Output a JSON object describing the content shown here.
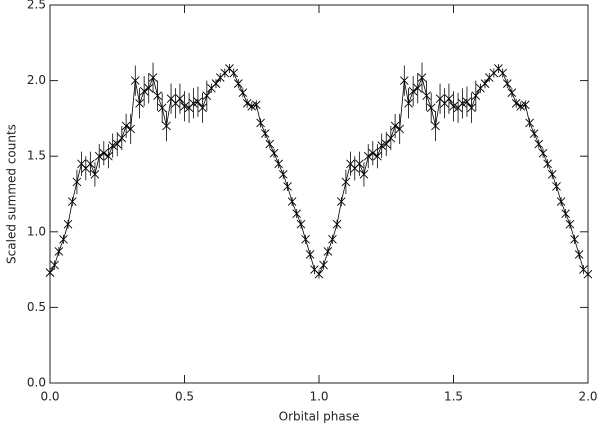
{
  "chart_data": {
    "type": "line",
    "xlabel": "Orbital phase",
    "ylabel": "Scaled summed counts",
    "xlim": [
      0,
      2
    ],
    "ylim": [
      0,
      2.5
    ],
    "xticks": [
      {
        "value": 0,
        "label": "0.0"
      },
      {
        "value": 0.5,
        "label": "0.5"
      },
      {
        "value": 1,
        "label": "1.0"
      },
      {
        "value": 1.5,
        "label": "1.5"
      },
      {
        "value": 2,
        "label": "2.0"
      }
    ],
    "yticks": [
      {
        "value": 0,
        "label": "0.0"
      },
      {
        "value": 0.5,
        "label": "0.5"
      },
      {
        "value": 1,
        "label": "1.0"
      },
      {
        "value": 1.5,
        "label": "1.5"
      },
      {
        "value": 2,
        "label": "2.0"
      },
      {
        "value": 2.5,
        "label": "2.5"
      }
    ],
    "x": [
      0,
      0.017,
      0.033,
      0.05,
      0.067,
      0.083,
      0.1,
      0.117,
      0.133,
      0.15,
      0.167,
      0.183,
      0.2,
      0.217,
      0.233,
      0.25,
      0.267,
      0.283,
      0.3,
      0.317,
      0.333,
      0.35,
      0.367,
      0.383,
      0.4,
      0.417,
      0.433,
      0.45,
      0.467,
      0.483,
      0.5,
      0.517,
      0.533,
      0.55,
      0.567,
      0.583,
      0.6,
      0.617,
      0.633,
      0.65,
      0.667,
      0.683,
      0.7,
      0.717,
      0.733,
      0.75,
      0.767,
      0.783,
      0.8,
      0.817,
      0.833,
      0.85,
      0.867,
      0.883,
      0.9,
      0.917,
      0.933,
      0.95,
      0.967,
      0.983,
      1.0,
      1.017,
      1.033,
      1.05,
      1.067,
      1.083,
      1.1,
      1.117,
      1.133,
      1.15,
      1.167,
      1.183,
      1.2,
      1.217,
      1.233,
      1.25,
      1.267,
      1.283,
      1.3,
      1.317,
      1.333,
      1.35,
      1.367,
      1.383,
      1.4,
      1.417,
      1.433,
      1.45,
      1.467,
      1.483,
      1.5,
      1.517,
      1.533,
      1.55,
      1.567,
      1.583,
      1.6,
      1.617,
      1.633,
      1.65,
      1.667,
      1.683,
      1.7,
      1.717,
      1.733,
      1.75,
      1.767,
      1.783,
      1.8,
      1.817,
      1.833,
      1.85,
      1.867,
      1.883,
      1.9,
      1.917,
      1.933,
      1.95,
      1.967,
      1.983,
      2.0
    ],
    "series": [
      {
        "color": "#000000",
        "values": [
          0.73,
          0.78,
          0.87,
          0.95,
          1.05,
          1.2,
          1.33,
          1.45,
          1.42,
          1.45,
          1.38,
          1.5,
          1.52,
          1.5,
          1.57,
          1.58,
          1.62,
          1.7,
          1.68,
          2.0,
          1.85,
          1.93,
          1.95,
          2.02,
          1.9,
          1.82,
          1.7,
          1.88,
          1.85,
          1.88,
          1.83,
          1.82,
          1.85,
          1.86,
          1.82,
          1.9,
          1.95,
          1.98,
          2.02,
          2.05,
          2.08,
          2.05,
          1.98,
          1.92,
          1.85,
          1.83,
          1.84,
          1.72,
          1.65,
          1.58,
          1.52,
          1.45,
          1.38,
          1.3,
          1.2,
          1.12,
          1.05,
          0.95,
          0.85,
          0.75,
          0.72,
          0.78,
          0.87,
          0.95,
          1.05,
          1.2,
          1.33,
          1.45,
          1.42,
          1.45,
          1.38,
          1.5,
          1.52,
          1.5,
          1.57,
          1.58,
          1.62,
          1.7,
          1.68,
          2.0,
          1.85,
          1.93,
          1.95,
          2.02,
          1.9,
          1.82,
          1.7,
          1.88,
          1.85,
          1.88,
          1.83,
          1.82,
          1.85,
          1.86,
          1.82,
          1.9,
          1.95,
          1.98,
          2.02,
          2.05,
          2.08,
          2.05,
          1.98,
          1.92,
          1.85,
          1.83,
          1.84,
          1.72,
          1.65,
          1.58,
          1.52,
          1.45,
          1.38,
          1.3,
          1.2,
          1.12,
          1.05,
          0.95,
          0.85,
          0.75,
          0.72
        ],
        "errors": [
          0.03,
          0.03,
          0.03,
          0.03,
          0.03,
          0.03,
          0.08,
          0.08,
          0.08,
          0.08,
          0.08,
          0.08,
          0.08,
          0.08,
          0.08,
          0.08,
          0.08,
          0.08,
          0.1,
          0.1,
          0.1,
          0.1,
          0.1,
          0.1,
          0.1,
          0.1,
          0.1,
          0.1,
          0.1,
          0.1,
          0.1,
          0.1,
          0.1,
          0.1,
          0.1,
          0.1,
          0.03,
          0.03,
          0.03,
          0.03,
          0.03,
          0.03,
          0.03,
          0.03,
          0.03,
          0.03,
          0.03,
          0.03,
          0.03,
          0.03,
          0.03,
          0.03,
          0.03,
          0.03,
          0.03,
          0.03,
          0.03,
          0.03,
          0.03,
          0.03,
          0.03,
          0.03,
          0.03,
          0.03,
          0.03,
          0.03,
          0.08,
          0.08,
          0.08,
          0.08,
          0.08,
          0.08,
          0.08,
          0.08,
          0.08,
          0.08,
          0.08,
          0.08,
          0.1,
          0.1,
          0.1,
          0.1,
          0.1,
          0.1,
          0.1,
          0.1,
          0.1,
          0.1,
          0.1,
          0.1,
          0.1,
          0.1,
          0.1,
          0.1,
          0.1,
          0.1,
          0.03,
          0.03,
          0.03,
          0.03,
          0.03,
          0.03,
          0.03,
          0.03,
          0.03,
          0.03,
          0.03,
          0.03,
          0.03,
          0.03,
          0.03,
          0.03,
          0.03,
          0.03,
          0.03,
          0.03,
          0.03,
          0.03,
          0.03,
          0.03,
          0.03
        ]
      }
    ]
  }
}
